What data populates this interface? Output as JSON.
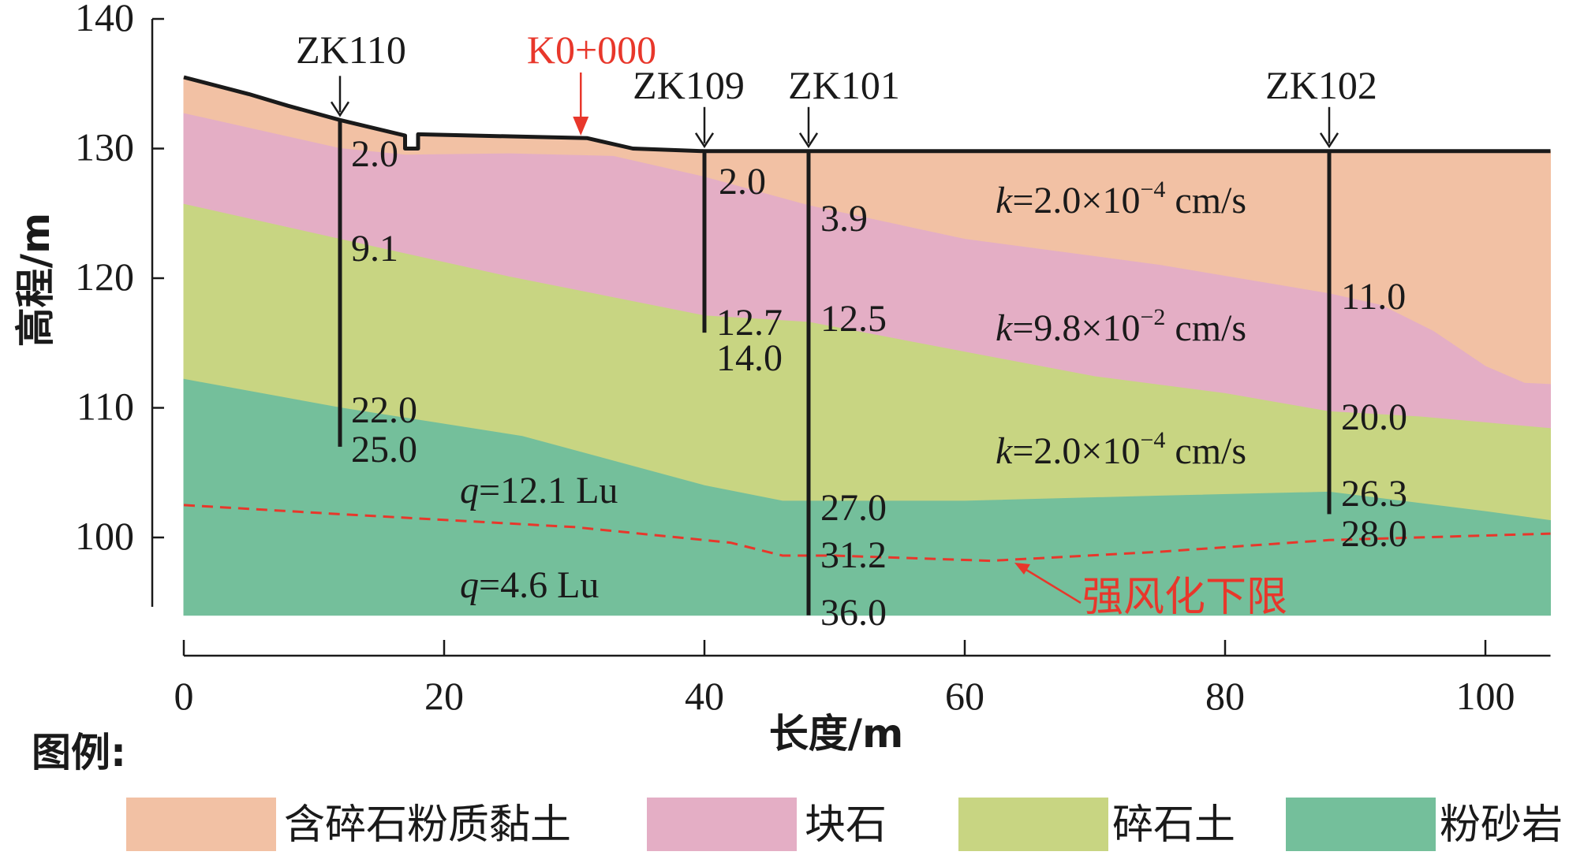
{
  "chart_data": {
    "type": "area",
    "xlabel": "长度/m",
    "ylabel": "高程/m",
    "xlim": [
      0,
      105
    ],
    "ylim": [
      94,
      140
    ],
    "x_ticks": [
      "0",
      "20",
      "40",
      "60",
      "80",
      "100"
    ],
    "y_ticks": [
      "100",
      "110",
      "120",
      "130",
      "140"
    ],
    "layers": [
      {
        "name": "含碎石粉质黏土",
        "color": "#f2c1a4"
      },
      {
        "name": "块石",
        "color": "#e4aec5"
      },
      {
        "name": "碎石土",
        "color": "#c8d582"
      },
      {
        "name": "粉砂岩",
        "color": "#74bf9b"
      }
    ],
    "ground_surface": [
      [
        0,
        135.5
      ],
      [
        5,
        134.2
      ],
      [
        8,
        133.3
      ],
      [
        12,
        132.2
      ],
      [
        17,
        131.0
      ],
      [
        17,
        130.0
      ],
      [
        18,
        130.0
      ],
      [
        18,
        131.1
      ],
      [
        31,
        130.8
      ],
      [
        34.5,
        130.0
      ],
      [
        40,
        129.8
      ],
      [
        105,
        129.8
      ]
    ],
    "boundaries": {
      "layer1_base": [
        [
          0,
          132.7
        ],
        [
          12,
          130.0
        ],
        [
          17,
          129.5
        ],
        [
          25,
          129.6
        ],
        [
          33,
          129.4
        ],
        [
          40,
          127.8
        ],
        [
          48,
          125.6
        ],
        [
          60,
          123.0
        ],
        [
          75,
          121.0
        ],
        [
          88,
          118.8
        ],
        [
          92,
          117.9
        ],
        [
          96,
          115.9
        ],
        [
          100,
          113.2
        ],
        [
          103,
          111.9
        ],
        [
          105,
          111.8
        ]
      ],
      "layer2_base": [
        [
          0,
          125.7
        ],
        [
          12,
          123.0
        ],
        [
          25,
          120.1
        ],
        [
          40,
          117.1
        ],
        [
          48,
          116.6
        ],
        [
          60,
          114.3
        ],
        [
          70,
          112.4
        ],
        [
          80,
          111.1
        ],
        [
          88,
          109.7
        ],
        [
          95,
          109.3
        ],
        [
          105,
          108.4
        ]
      ],
      "layer3_base": [
        [
          0,
          112.2
        ],
        [
          12,
          110.0
        ],
        [
          26,
          107.8
        ],
        [
          40,
          104.0
        ],
        [
          46,
          102.8
        ],
        [
          48,
          102.8
        ],
        [
          60,
          102.8
        ],
        [
          75,
          103.2
        ],
        [
          88,
          103.5
        ],
        [
          100,
          102.0
        ],
        [
          105,
          101.3
        ]
      ],
      "layer4_base": [
        [
          0,
          94
        ],
        [
          105,
          94
        ]
      ]
    },
    "weathering_limit": [
      [
        0,
        102.5
      ],
      [
        12,
        101.8
      ],
      [
        30,
        100.8
      ],
      [
        42,
        99.6
      ],
      [
        46,
        98.6
      ],
      [
        50,
        98.6
      ],
      [
        62,
        98.2
      ],
      [
        75,
        98.9
      ],
      [
        88,
        99.8
      ],
      [
        105,
        100.3
      ]
    ],
    "boreholes": [
      {
        "name": "ZK110",
        "x": 12,
        "top": 132.2,
        "bottom": 107.0,
        "depths": [
          "2.0",
          "9.1",
          "22.0",
          "25.0"
        ]
      },
      {
        "name": "ZK109",
        "x": 40,
        "top": 129.8,
        "bottom": 115.8,
        "depths": [
          "2.0",
          "12.7",
          "14.0"
        ]
      },
      {
        "name": "ZK101",
        "x": 48,
        "top": 129.8,
        "bottom": 94.0,
        "depths": [
          "3.9",
          "12.5",
          "27.0",
          "31.2",
          "36.0"
        ]
      },
      {
        "name": "ZK102",
        "x": 88,
        "top": 129.8,
        "bottom": 101.8,
        "depths": [
          "11.0",
          "20.0",
          "26.3",
          "28.0"
        ]
      }
    ],
    "chainage_marker": {
      "label": "K0+000",
      "x": 30.5,
      "color": "#e8372b"
    },
    "annotations": [
      {
        "type": "k",
        "base": "2.0×10",
        "exp": "−4",
        "unit": " cm/s"
      },
      {
        "type": "k",
        "base": "9.8×10",
        "exp": "−2",
        "unit": " cm/s"
      },
      {
        "type": "k",
        "base": "2.0×10",
        "exp": "−4",
        "unit": " cm/s"
      },
      {
        "type": "q",
        "text": "=12.1 Lu"
      },
      {
        "type": "q",
        "text": "=4.6 Lu"
      }
    ],
    "weathering_label": "强风化下限",
    "legend_title": "图例:"
  }
}
